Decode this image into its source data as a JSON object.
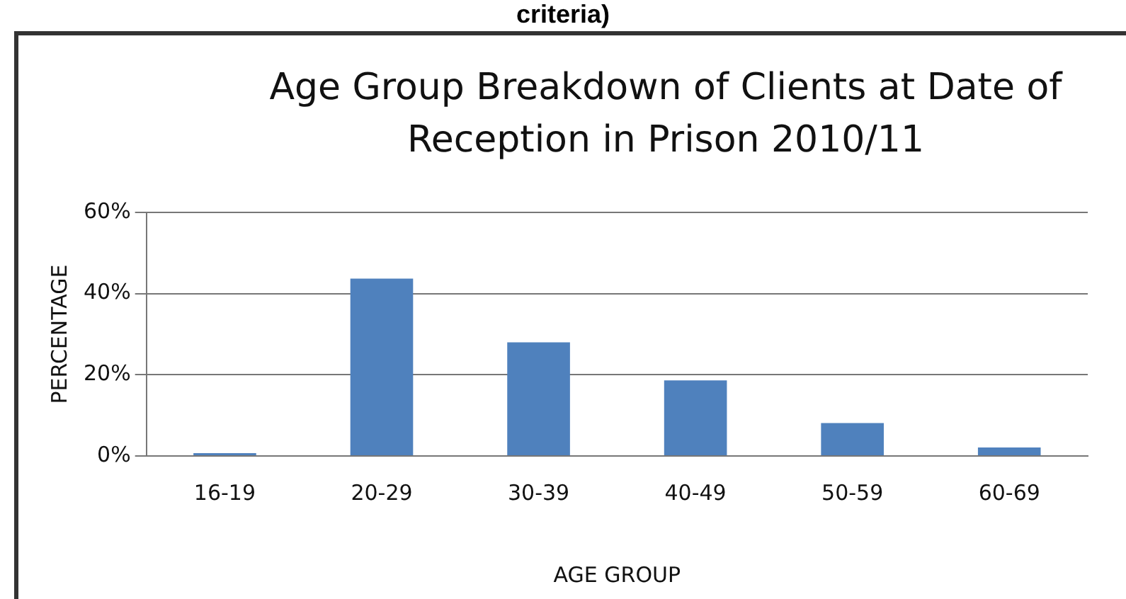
{
  "chart_data": {
    "type": "bar",
    "title": "Age Group Breakdown of Clients at Date of Reception in Prison 2010/11",
    "xlabel": "AGE GROUP",
    "ylabel": "PERCENTAGE",
    "annotations": [
      "criteria)"
    ],
    "categories": [
      "16-19",
      "20-29",
      "30-39",
      "40-49",
      "50-59",
      "60-69"
    ],
    "values": [
      0.7,
      43.7,
      28,
      18.6,
      8.1,
      2.1
    ],
    "color": "#4f81bd",
    "ylim": [
      0,
      60
    ],
    "yticks": [
      {
        "value": 0,
        "label": "0%"
      },
      {
        "value": 20,
        "label": "20%"
      },
      {
        "value": 40,
        "label": "40%"
      },
      {
        "value": 60,
        "label": "60%"
      }
    ],
    "grid": "y",
    "legend": false
  }
}
